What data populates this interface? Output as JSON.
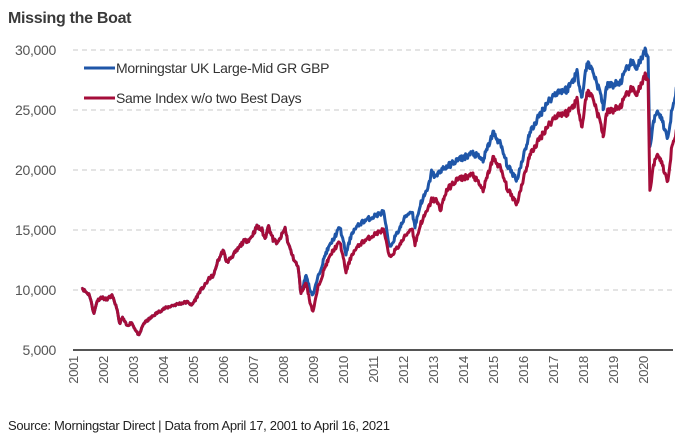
{
  "chart_data": {
    "type": "line",
    "title": "Missing the Boat",
    "xlabel": "",
    "ylabel": "",
    "ylim": [
      5000,
      30000
    ],
    "xlim": [
      2001.0,
      2021.0
    ],
    "yticks": [
      5000,
      10000,
      15000,
      20000,
      25000,
      30000
    ],
    "ytick_labels": [
      "5,000",
      "10,000",
      "15,000",
      "20,000",
      "25,000",
      "30,000"
    ],
    "xtick_labels": [
      "2001",
      "2002",
      "2003",
      "2004",
      "2005",
      "2006",
      "2007",
      "2008",
      "2009",
      "2010",
      "2011",
      "2012",
      "2013",
      "2014",
      "2015",
      "2016",
      "2017",
      "2018",
      "2019",
      "2020"
    ],
    "grid": "horizontal-dashed",
    "legend_position": "top-left",
    "series": [
      {
        "name": "Morningstar UK Large-Mid GR GBP",
        "color": "#1f56a8",
        "points": [
          [
            2001.29,
            10200
          ],
          [
            2001.4,
            9900
          ],
          [
            2001.55,
            9600
          ],
          [
            2001.7,
            8000
          ],
          [
            2001.8,
            9100
          ],
          [
            2001.95,
            9400
          ],
          [
            2002.1,
            9200
          ],
          [
            2002.3,
            9500
          ],
          [
            2002.45,
            8600
          ],
          [
            2002.55,
            7200
          ],
          [
            2002.65,
            7700
          ],
          [
            2002.8,
            7000
          ],
          [
            2002.95,
            7300
          ],
          [
            2003.1,
            6600
          ],
          [
            2003.2,
            6200
          ],
          [
            2003.35,
            7200
          ],
          [
            2003.55,
            7600
          ],
          [
            2003.75,
            8000
          ],
          [
            2004.0,
            8400
          ],
          [
            2004.3,
            8700
          ],
          [
            2004.6,
            8900
          ],
          [
            2004.85,
            9000
          ],
          [
            2004.95,
            8700
          ],
          [
            2005.1,
            9300
          ],
          [
            2005.23,
            9900
          ],
          [
            2005.4,
            10400
          ],
          [
            2005.55,
            11000
          ],
          [
            2005.7,
            11250
          ],
          [
            2005.8,
            12250
          ],
          [
            2006.0,
            13300
          ],
          [
            2006.13,
            12300
          ],
          [
            2006.3,
            12800
          ],
          [
            2006.47,
            13300
          ],
          [
            2006.67,
            14000
          ],
          [
            2006.9,
            14250
          ],
          [
            2007.13,
            15250
          ],
          [
            2007.3,
            15000
          ],
          [
            2007.4,
            14250
          ],
          [
            2007.5,
            15400
          ],
          [
            2007.67,
            14200
          ],
          [
            2007.83,
            13900
          ],
          [
            2008.07,
            15150
          ],
          [
            2008.17,
            13900
          ],
          [
            2008.33,
            12750
          ],
          [
            2008.5,
            11900
          ],
          [
            2008.6,
            9750
          ],
          [
            2008.77,
            11250
          ],
          [
            2008.9,
            10000
          ],
          [
            2009.0,
            9600
          ],
          [
            2009.17,
            11100
          ],
          [
            2009.43,
            13100
          ],
          [
            2009.67,
            14200
          ],
          [
            2009.9,
            15250
          ],
          [
            2010.1,
            13000
          ],
          [
            2010.3,
            14800
          ],
          [
            2010.6,
            15600
          ],
          [
            2010.9,
            16000
          ],
          [
            2011.17,
            16300
          ],
          [
            2011.35,
            16500
          ],
          [
            2011.55,
            13500
          ],
          [
            2011.9,
            15200
          ],
          [
            2012.1,
            16200
          ],
          [
            2012.3,
            16600
          ],
          [
            2012.4,
            15300
          ],
          [
            2012.6,
            17300
          ],
          [
            2012.83,
            18400
          ],
          [
            2012.95,
            19800
          ],
          [
            2013.1,
            19400
          ],
          [
            2013.25,
            20000
          ],
          [
            2013.45,
            20250
          ],
          [
            2013.8,
            20800
          ],
          [
            2014.33,
            21400
          ],
          [
            2014.67,
            20800
          ],
          [
            2015.0,
            23100
          ],
          [
            2015.23,
            22250
          ],
          [
            2015.5,
            20250
          ],
          [
            2015.8,
            19200
          ],
          [
            2015.97,
            20800
          ],
          [
            2016.23,
            23100
          ],
          [
            2016.47,
            24200
          ],
          [
            2016.8,
            25600
          ],
          [
            2017.13,
            26500
          ],
          [
            2017.47,
            26700
          ],
          [
            2017.8,
            28100
          ],
          [
            2017.97,
            26100
          ],
          [
            2018.13,
            28900
          ],
          [
            2018.33,
            28300
          ],
          [
            2018.67,
            25600
          ],
          [
            2018.8,
            27000
          ],
          [
            2018.67,
            25000
          ],
          [
            2019.23,
            27250
          ],
          [
            2019.57,
            28900
          ],
          [
            2019.8,
            28600
          ],
          [
            2020.07,
            29800
          ],
          [
            2020.17,
            29200
          ],
          [
            2020.23,
            21700
          ],
          [
            2020.33,
            23900
          ],
          [
            2020.5,
            25000
          ],
          [
            2020.67,
            23900
          ],
          [
            2020.83,
            22500
          ],
          [
            2020.97,
            25250
          ],
          [
            2021.13,
            26900
          ],
          [
            2021.3,
            28900
          ]
        ]
      },
      {
        "name": "Same Index w/o two Best Days",
        "color": "#a50d3a",
        "points": [
          [
            2001.29,
            10200
          ],
          [
            2001.4,
            9900
          ],
          [
            2001.55,
            9600
          ],
          [
            2001.7,
            8000
          ],
          [
            2001.8,
            9100
          ],
          [
            2001.95,
            9400
          ],
          [
            2002.1,
            9200
          ],
          [
            2002.3,
            9500
          ],
          [
            2002.45,
            8600
          ],
          [
            2002.55,
            7200
          ],
          [
            2002.65,
            7700
          ],
          [
            2002.8,
            7000
          ],
          [
            2002.95,
            7300
          ],
          [
            2003.1,
            6600
          ],
          [
            2003.2,
            6200
          ],
          [
            2003.35,
            7200
          ],
          [
            2003.55,
            7600
          ],
          [
            2003.75,
            8000
          ],
          [
            2004.0,
            8400
          ],
          [
            2004.3,
            8700
          ],
          [
            2004.6,
            8900
          ],
          [
            2004.85,
            9000
          ],
          [
            2004.95,
            8700
          ],
          [
            2005.1,
            9300
          ],
          [
            2005.23,
            9900
          ],
          [
            2005.4,
            10400
          ],
          [
            2005.55,
            11000
          ],
          [
            2005.7,
            11250
          ],
          [
            2005.8,
            12250
          ],
          [
            2006.0,
            13300
          ],
          [
            2006.13,
            12300
          ],
          [
            2006.3,
            12800
          ],
          [
            2006.47,
            13300
          ],
          [
            2006.67,
            14000
          ],
          [
            2006.9,
            14250
          ],
          [
            2007.13,
            15250
          ],
          [
            2007.3,
            15000
          ],
          [
            2007.4,
            14250
          ],
          [
            2007.5,
            15400
          ],
          [
            2007.67,
            14200
          ],
          [
            2007.83,
            13900
          ],
          [
            2008.07,
            15150
          ],
          [
            2008.17,
            13900
          ],
          [
            2008.33,
            12750
          ],
          [
            2008.5,
            11900
          ],
          [
            2008.6,
            9750
          ],
          [
            2008.77,
            10600
          ],
          [
            2008.9,
            9000
          ],
          [
            2009.0,
            8200
          ],
          [
            2009.17,
            10250
          ],
          [
            2009.43,
            12100
          ],
          [
            2009.67,
            13300
          ],
          [
            2009.9,
            14000
          ],
          [
            2010.1,
            11500
          ],
          [
            2010.3,
            13000
          ],
          [
            2010.6,
            13900
          ],
          [
            2010.9,
            14400
          ],
          [
            2011.17,
            14800
          ],
          [
            2011.35,
            15000
          ],
          [
            2011.55,
            12700
          ],
          [
            2011.9,
            13800
          ],
          [
            2012.1,
            14600
          ],
          [
            2012.3,
            15200
          ],
          [
            2012.4,
            13800
          ],
          [
            2012.6,
            15600
          ],
          [
            2012.83,
            16700
          ],
          [
            2012.95,
            17500
          ],
          [
            2013.1,
            17500
          ],
          [
            2013.25,
            16700
          ],
          [
            2013.45,
            18300
          ],
          [
            2013.8,
            19200
          ],
          [
            2014.33,
            19600
          ],
          [
            2014.67,
            18300
          ],
          [
            2015.0,
            21000
          ],
          [
            2015.23,
            20250
          ],
          [
            2015.5,
            18300
          ],
          [
            2015.8,
            17200
          ],
          [
            2015.97,
            18900
          ],
          [
            2016.23,
            21250
          ],
          [
            2016.47,
            22250
          ],
          [
            2016.8,
            23600
          ],
          [
            2017.13,
            24600
          ],
          [
            2017.47,
            24750
          ],
          [
            2017.8,
            25800
          ],
          [
            2017.97,
            23600
          ],
          [
            2018.13,
            26500
          ],
          [
            2018.33,
            26100
          ],
          [
            2018.67,
            23100
          ],
          [
            2018.8,
            24800
          ],
          [
            2018.67,
            22750
          ],
          [
            2019.23,
            25250
          ],
          [
            2019.57,
            26700
          ],
          [
            2019.8,
            26400
          ],
          [
            2020.07,
            27750
          ],
          [
            2020.17,
            27300
          ],
          [
            2020.23,
            18100
          ],
          [
            2020.33,
            20250
          ],
          [
            2020.5,
            21400
          ],
          [
            2020.67,
            20250
          ],
          [
            2020.83,
            18900
          ],
          [
            2020.97,
            22250
          ],
          [
            2021.13,
            23300
          ],
          [
            2021.3,
            24400
          ]
        ]
      }
    ]
  },
  "footer": "Source: Morningstar Direct  |  Data from April 17, 2001 to April 16, 2021"
}
